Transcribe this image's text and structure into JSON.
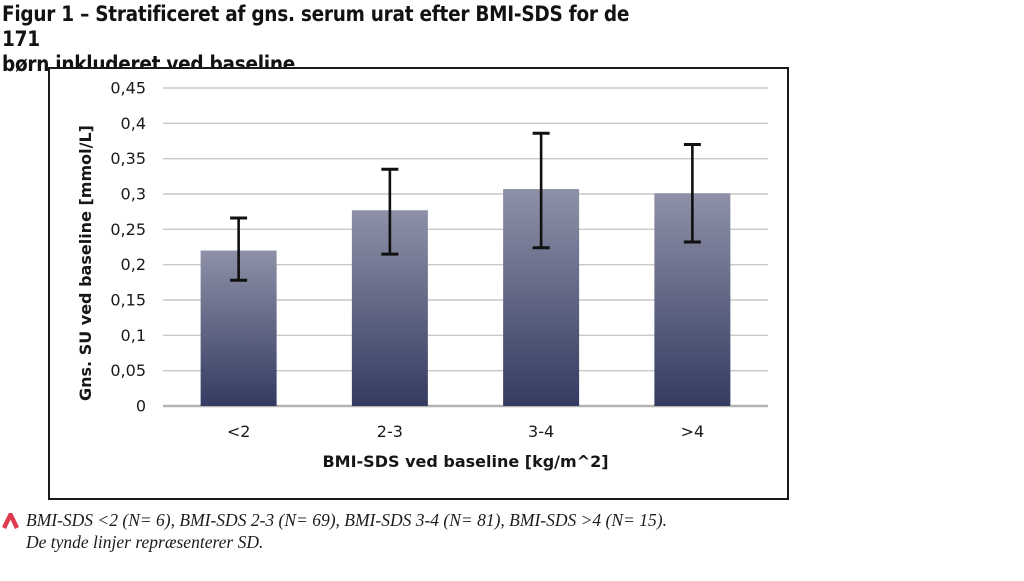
{
  "figure": {
    "title_line1": "Figur 1 – Stratificeret af gns. serum urat efter BMI-SDS for de 171",
    "title_line2": "børn inkluderet ved baseline"
  },
  "chart_data": {
    "type": "bar",
    "title": "Figur 1 – Stratificeret af gns. serum urat efter BMI-SDS for de 171 børn inkluderet ved baseline",
    "categories": [
      "<2",
      "2-3",
      "3-4",
      ">4"
    ],
    "values": [
      0.22,
      0.277,
      0.307,
      0.301
    ],
    "n_per_group": [
      6,
      69,
      81,
      15
    ],
    "error_bars": {
      "represents": "SD",
      "upper": [
        0.266,
        0.335,
        0.386,
        0.37
      ],
      "lower": [
        0.178,
        0.215,
        0.224,
        0.232
      ]
    },
    "xlabel": "BMI-SDS ved baseline [kg/m^2]",
    "ylabel": "Gns. SU ved baseline [mmol/L]",
    "ylim": [
      0,
      0.45
    ],
    "ytick_values": [
      0,
      0.05,
      0.1,
      0.15,
      0.2,
      0.25,
      0.3,
      0.35,
      0.4,
      0.45
    ],
    "ytick_labels": [
      "0",
      "0,05",
      "0,1",
      "0,15",
      "0,2",
      "0,25",
      "0,3",
      "0,35",
      "0,4",
      "0,45"
    ],
    "grid": true,
    "legend": "none",
    "colors": {
      "bar_gradient_top": "#8e91a7",
      "bar_gradient_bottom": "#343b61",
      "gridline": "#c9c9c9",
      "axis_line": "#b3b3b3",
      "error_bar": "#101010",
      "chart_border": "#1a1a1a"
    }
  },
  "footnote": {
    "marker_icon": "chevron-up",
    "marker_color": "#e03a50",
    "line1": "BMI-SDS <2 (N= 6), BMI-SDS 2-3 (N= 69), BMI-SDS 3-4 (N= 81), BMI-SDS >4 (N= 15).",
    "line2": "De tynde linjer repræsenterer SD."
  }
}
